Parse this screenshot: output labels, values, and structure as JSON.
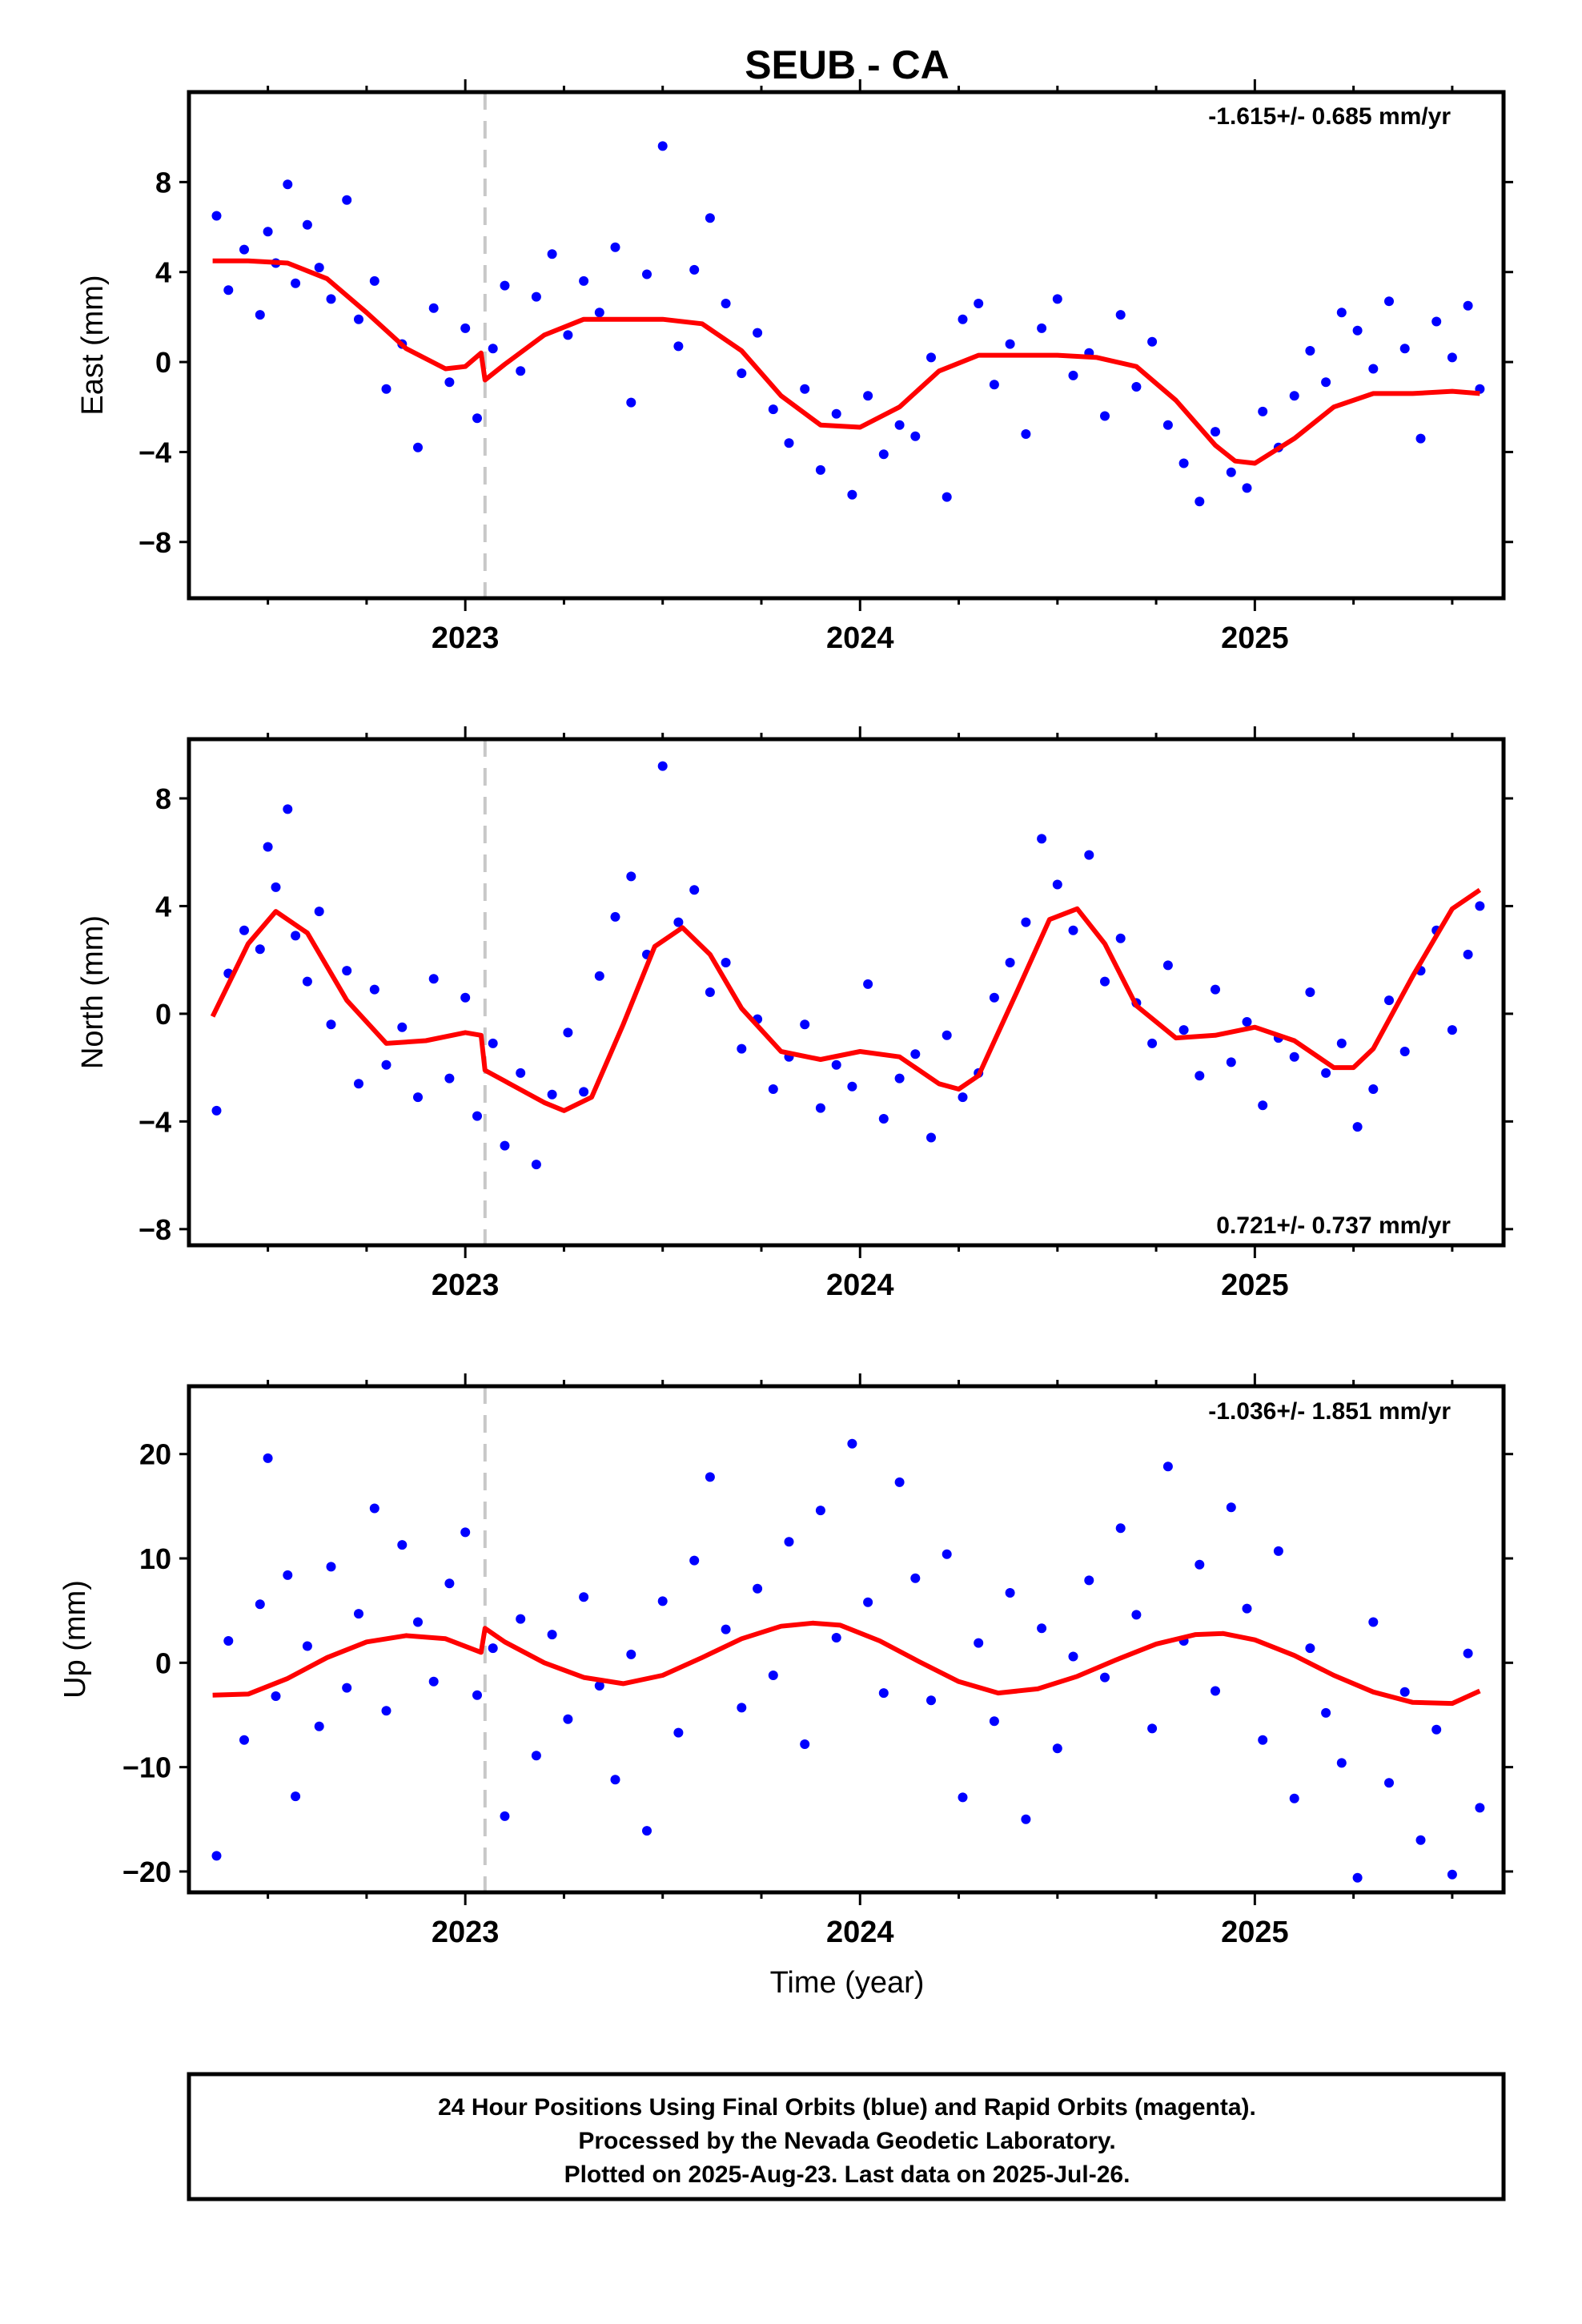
{
  "title": "SEUB - CA",
  "xlabel": "Time (year)",
  "footer": {
    "line1": "24 Hour Positions Using Final Orbits (blue) and Rapid Orbits (magenta).",
    "line2": "Processed by the Nevada Geodetic Laboratory.",
    "line3": "Plotted on 2025-Aug-23. Last data on 2025-Jul-26."
  },
  "colors": {
    "points": "#0000ff",
    "model": "#ff0000",
    "equipment_change": "#c8c8c8",
    "frame": "#000000"
  },
  "chart_data": [
    {
      "type": "scatter",
      "component": "east",
      "ylabel": "East (mm)",
      "rate_label": "-1.615+/- 0.685 mm/yr",
      "rate_position": "top-right",
      "xlim": [
        2022.3,
        2025.63
      ],
      "ylim": [
        -10.5,
        12
      ],
      "yticks": [
        -8,
        -4,
        0,
        4,
        8
      ],
      "xticks": [
        2023,
        2024,
        2025
      ],
      "equipment_change": 2023.05,
      "series": [
        {
          "kind": "points",
          "color": "#0000ff",
          "x": [
            2022.37,
            2022.4,
            2022.44,
            2022.48,
            2022.5,
            2022.52,
            2022.55,
            2022.57,
            2022.6,
            2022.63,
            2022.66,
            2022.7,
            2022.73,
            2022.77,
            2022.8,
            2022.84,
            2022.88,
            2022.92,
            2022.96,
            2023.0,
            2023.03,
            2023.07,
            2023.1,
            2023.14,
            2023.18,
            2023.22,
            2023.26,
            2023.3,
            2023.34,
            2023.38,
            2023.42,
            2023.46,
            2023.5,
            2023.54,
            2023.58,
            2023.62,
            2023.66,
            2023.7,
            2023.74,
            2023.78,
            2023.82,
            2023.86,
            2023.9,
            2023.94,
            2023.98,
            2024.02,
            2024.06,
            2024.1,
            2024.14,
            2024.18,
            2024.22,
            2024.26,
            2024.3,
            2024.34,
            2024.38,
            2024.42,
            2024.46,
            2024.5,
            2024.54,
            2024.58,
            2024.62,
            2024.66,
            2024.7,
            2024.74,
            2024.78,
            2024.82,
            2024.86,
            2024.9,
            2024.94,
            2024.98,
            2025.02,
            2025.06,
            2025.1,
            2025.14,
            2025.18,
            2025.22,
            2025.26,
            2025.3,
            2025.34,
            2025.38,
            2025.42,
            2025.46,
            2025.5,
            2025.54,
            2025.57
          ],
          "y": [
            6.5,
            3.2,
            5.0,
            2.1,
            5.8,
            4.4,
            7.9,
            3.5,
            6.1,
            4.2,
            2.8,
            7.2,
            1.9,
            3.6,
            -1.2,
            0.8,
            -3.8,
            2.4,
            -0.9,
            1.5,
            -2.5,
            0.6,
            3.4,
            -0.4,
            2.9,
            4.8,
            1.2,
            3.6,
            2.2,
            5.1,
            -1.8,
            3.9,
            9.6,
            0.7,
            4.1,
            6.4,
            2.6,
            -0.5,
            1.3,
            -2.1,
            -3.6,
            -1.2,
            -4.8,
            -2.3,
            -5.9,
            -1.5,
            -4.1,
            -2.8,
            -3.3,
            0.2,
            -6.0,
            1.9,
            2.6,
            -1.0,
            0.8,
            -3.2,
            1.5,
            2.8,
            -0.6,
            0.4,
            -2.4,
            2.1,
            -1.1,
            0.9,
            -2.8,
            -4.5,
            -6.2,
            -3.1,
            -4.9,
            -5.6,
            -2.2,
            -3.8,
            -1.5,
            0.5,
            -0.9,
            2.2,
            1.4,
            -0.3,
            2.7,
            0.6,
            -3.4,
            1.8,
            0.2,
            2.5,
            -1.2
          ]
        },
        {
          "kind": "model",
          "color": "#ff0000",
          "x": [
            2022.36,
            2022.45,
            2022.55,
            2022.65,
            2022.75,
            2022.85,
            2022.95,
            2023.0,
            2023.04,
            2023.05,
            2023.1,
            2023.2,
            2023.3,
            2023.4,
            2023.5,
            2023.6,
            2023.7,
            2023.8,
            2023.9,
            2024.0,
            2024.1,
            2024.2,
            2024.3,
            2024.4,
            2024.5,
            2024.6,
            2024.7,
            2024.8,
            2024.9,
            2024.95,
            2025.0,
            2025.1,
            2025.2,
            2025.3,
            2025.4,
            2025.5,
            2025.57
          ],
          "y": [
            4.5,
            4.5,
            4.4,
            3.7,
            2.2,
            0.6,
            -0.3,
            -0.2,
            0.4,
            -0.8,
            -0.1,
            1.2,
            1.9,
            1.9,
            1.9,
            1.7,
            0.5,
            -1.5,
            -2.8,
            -2.9,
            -2.0,
            -0.4,
            0.3,
            0.3,
            0.3,
            0.2,
            -0.2,
            -1.7,
            -3.7,
            -4.4,
            -4.5,
            -3.4,
            -2.0,
            -1.4,
            -1.4,
            -1.3,
            -1.4
          ]
        }
      ]
    },
    {
      "type": "scatter",
      "component": "north",
      "ylabel": "North (mm)",
      "rate_label": "0.721+/- 0.737 mm/yr",
      "rate_position": "bottom-right",
      "xlim": [
        2022.3,
        2025.63
      ],
      "ylim": [
        -8.6,
        10.2
      ],
      "yticks": [
        -8,
        -4,
        0,
        4,
        8
      ],
      "xticks": [
        2023,
        2024,
        2025
      ],
      "equipment_change": 2023.05,
      "series": [
        {
          "kind": "points",
          "color": "#0000ff",
          "x": [
            2022.37,
            2022.4,
            2022.44,
            2022.48,
            2022.5,
            2022.52,
            2022.55,
            2022.57,
            2022.6,
            2022.63,
            2022.66,
            2022.7,
            2022.73,
            2022.77,
            2022.8,
            2022.84,
            2022.88,
            2022.92,
            2022.96,
            2023.0,
            2023.03,
            2023.07,
            2023.1,
            2023.14,
            2023.18,
            2023.22,
            2023.26,
            2023.3,
            2023.34,
            2023.38,
            2023.42,
            2023.46,
            2023.5,
            2023.54,
            2023.58,
            2023.62,
            2023.66,
            2023.7,
            2023.74,
            2023.78,
            2023.82,
            2023.86,
            2023.9,
            2023.94,
            2023.98,
            2024.02,
            2024.06,
            2024.1,
            2024.14,
            2024.18,
            2024.22,
            2024.26,
            2024.3,
            2024.34,
            2024.38,
            2024.42,
            2024.46,
            2024.5,
            2024.54,
            2024.58,
            2024.62,
            2024.66,
            2024.7,
            2024.74,
            2024.78,
            2024.82,
            2024.86,
            2024.9,
            2024.94,
            2024.98,
            2025.02,
            2025.06,
            2025.1,
            2025.14,
            2025.18,
            2025.22,
            2025.26,
            2025.3,
            2025.34,
            2025.38,
            2025.42,
            2025.46,
            2025.5,
            2025.54,
            2025.57
          ],
          "y": [
            -3.6,
            1.5,
            3.1,
            2.4,
            6.2,
            4.7,
            7.6,
            2.9,
            1.2,
            3.8,
            -0.4,
            1.6,
            -2.6,
            0.9,
            -1.9,
            -0.5,
            -3.1,
            1.3,
            -2.4,
            0.6,
            -3.8,
            -1.1,
            -4.9,
            -2.2,
            -5.6,
            -3.0,
            -0.7,
            -2.9,
            1.4,
            3.6,
            5.1,
            2.2,
            9.2,
            3.4,
            4.6,
            0.8,
            1.9,
            -1.3,
            -0.2,
            -2.8,
            -1.6,
            -0.4,
            -3.5,
            -1.9,
            -2.7,
            1.1,
            -3.9,
            -2.4,
            -1.5,
            -4.6,
            -0.8,
            -3.1,
            -2.2,
            0.6,
            1.9,
            3.4,
            6.5,
            4.8,
            3.1,
            5.9,
            1.2,
            2.8,
            0.4,
            -1.1,
            1.8,
            -0.6,
            -2.3,
            0.9,
            -1.8,
            -0.3,
            -3.4,
            -0.9,
            -1.6,
            0.8,
            -2.2,
            -1.1,
            -4.2,
            -2.8,
            0.5,
            -1.4,
            1.6,
            3.1,
            -0.6,
            2.2,
            4.0
          ]
        },
        {
          "kind": "model",
          "color": "#ff0000",
          "x": [
            2022.36,
            2022.45,
            2022.52,
            2022.6,
            2022.7,
            2022.8,
            2022.9,
            2023.0,
            2023.04,
            2023.05,
            2023.1,
            2023.2,
            2023.25,
            2023.32,
            2023.4,
            2023.48,
            2023.55,
            2023.62,
            2023.7,
            2023.8,
            2023.9,
            2024.0,
            2024.1,
            2024.2,
            2024.25,
            2024.3,
            2024.4,
            2024.48,
            2024.55,
            2024.62,
            2024.7,
            2024.8,
            2024.9,
            2025.0,
            2025.1,
            2025.2,
            2025.25,
            2025.3,
            2025.4,
            2025.5,
            2025.57
          ],
          "y": [
            -0.1,
            2.6,
            3.8,
            3.0,
            0.5,
            -1.1,
            -1.0,
            -0.7,
            -0.8,
            -2.1,
            -2.5,
            -3.3,
            -3.6,
            -3.1,
            -0.4,
            2.5,
            3.2,
            2.2,
            0.2,
            -1.4,
            -1.7,
            -1.4,
            -1.6,
            -2.6,
            -2.8,
            -2.3,
            0.9,
            3.5,
            3.9,
            2.6,
            0.3,
            -0.9,
            -0.8,
            -0.5,
            -1.0,
            -2.0,
            -2.0,
            -1.3,
            1.4,
            3.9,
            4.6
          ]
        }
      ]
    },
    {
      "type": "scatter",
      "component": "up",
      "ylabel": "Up (mm)",
      "rate_label": "-1.036+/- 1.851 mm/yr",
      "rate_position": "top-right",
      "xlim": [
        2022.3,
        2025.63
      ],
      "ylim": [
        -22,
        26.5
      ],
      "yticks": [
        -20,
        -10,
        0,
        10,
        20
      ],
      "xticks": [
        2023,
        2024,
        2025
      ],
      "equipment_change": 2023.05,
      "series": [
        {
          "kind": "points",
          "color": "#0000ff",
          "x": [
            2022.37,
            2022.4,
            2022.44,
            2022.48,
            2022.5,
            2022.52,
            2022.55,
            2022.57,
            2022.6,
            2022.63,
            2022.66,
            2022.7,
            2022.73,
            2022.77,
            2022.8,
            2022.84,
            2022.88,
            2022.92,
            2022.96,
            2023.0,
            2023.03,
            2023.07,
            2023.1,
            2023.14,
            2023.18,
            2023.22,
            2023.26,
            2023.3,
            2023.34,
            2023.38,
            2023.42,
            2023.46,
            2023.5,
            2023.54,
            2023.58,
            2023.62,
            2023.66,
            2023.7,
            2023.74,
            2023.78,
            2023.82,
            2023.86,
            2023.9,
            2023.94,
            2023.98,
            2024.02,
            2024.06,
            2024.1,
            2024.14,
            2024.18,
            2024.22,
            2024.26,
            2024.3,
            2024.34,
            2024.38,
            2024.42,
            2024.46,
            2024.5,
            2024.54,
            2024.58,
            2024.62,
            2024.66,
            2024.7,
            2024.74,
            2024.78,
            2024.82,
            2024.86,
            2024.9,
            2024.94,
            2024.98,
            2025.02,
            2025.06,
            2025.1,
            2025.14,
            2025.18,
            2025.22,
            2025.26,
            2025.3,
            2025.34,
            2025.38,
            2025.42,
            2025.46,
            2025.5,
            2025.54,
            2025.57
          ],
          "y": [
            -18.5,
            2.1,
            -7.4,
            5.6,
            19.6,
            -3.2,
            8.4,
            -12.8,
            1.6,
            -6.1,
            9.2,
            -2.4,
            4.7,
            14.8,
            -4.6,
            11.3,
            3.9,
            -1.8,
            7.6,
            12.5,
            -3.1,
            1.4,
            -14.7,
            4.2,
            -8.9,
            2.7,
            -5.4,
            6.3,
            -2.2,
            -11.2,
            0.8,
            -16.1,
            5.9,
            -6.7,
            9.8,
            17.8,
            3.2,
            -4.3,
            7.1,
            -1.2,
            11.6,
            -7.8,
            14.6,
            2.4,
            21.0,
            5.8,
            -2.9,
            17.3,
            8.1,
            -3.6,
            10.4,
            -12.9,
            1.9,
            -5.6,
            6.7,
            -15.0,
            3.3,
            -8.2,
            0.6,
            7.9,
            -1.4,
            12.9,
            4.6,
            -6.3,
            18.8,
            2.1,
            9.4,
            -2.7,
            14.9,
            5.2,
            -7.4,
            10.7,
            -13.0,
            1.4,
            -4.8,
            -9.6,
            -20.6,
            3.9,
            -11.5,
            -2.8,
            -17.0,
            -6.4,
            -20.3,
            0.9,
            -13.9
          ]
        },
        {
          "kind": "model",
          "color": "#ff0000",
          "x": [
            2022.36,
            2022.45,
            2022.55,
            2022.65,
            2022.75,
            2022.85,
            2022.95,
            2023.04,
            2023.05,
            2023.1,
            2023.2,
            2023.3,
            2023.4,
            2023.5,
            2023.6,
            2023.7,
            2023.8,
            2023.88,
            2023.95,
            2024.05,
            2024.15,
            2024.25,
            2024.35,
            2024.45,
            2024.55,
            2024.65,
            2024.75,
            2024.85,
            2024.92,
            2025.0,
            2025.1,
            2025.2,
            2025.3,
            2025.4,
            2025.5,
            2025.57
          ],
          "y": [
            -3.1,
            -3.0,
            -1.5,
            0.5,
            2.0,
            2.6,
            2.3,
            1.0,
            3.3,
            2.0,
            0.0,
            -1.4,
            -2.0,
            -1.2,
            0.5,
            2.3,
            3.5,
            3.8,
            3.6,
            2.1,
            0.1,
            -1.8,
            -2.9,
            -2.5,
            -1.3,
            0.3,
            1.8,
            2.7,
            2.8,
            2.2,
            0.7,
            -1.2,
            -2.8,
            -3.8,
            -3.9,
            -2.7
          ]
        }
      ]
    }
  ]
}
